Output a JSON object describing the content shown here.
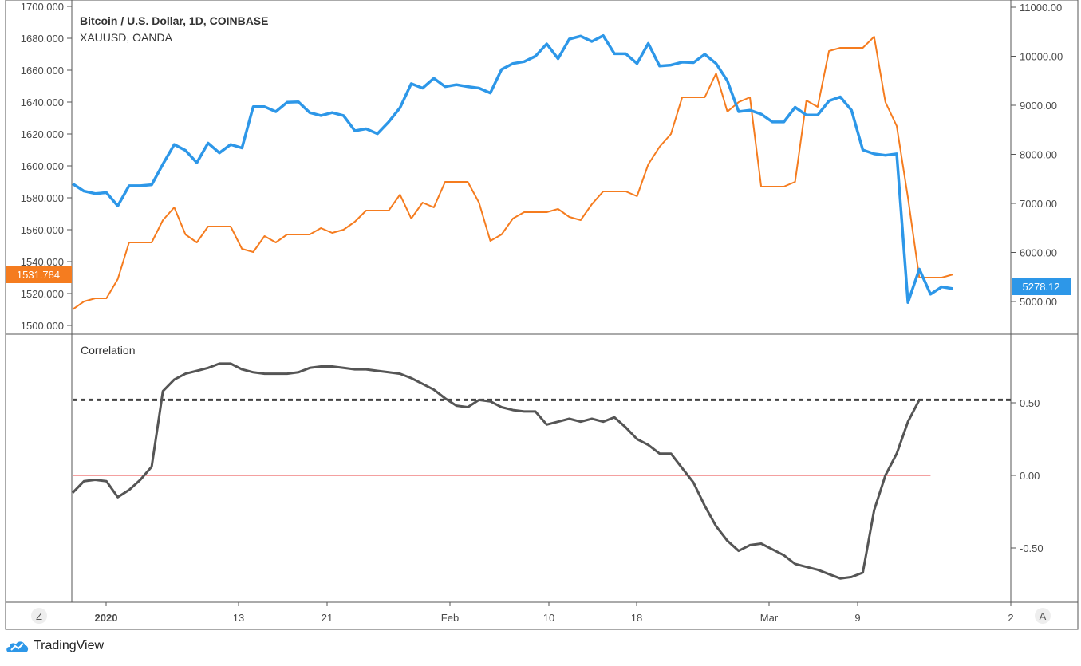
{
  "chart_data": [
    {
      "type": "line",
      "title": "Bitcoin / U.S. Dollar, 1D, COINBASE",
      "subtitle": "XAUUSD, OANDA",
      "x_labels": [
        "2020",
        "13",
        "21",
        "Feb",
        "10",
        "18",
        "Mar",
        "9",
        "2"
      ],
      "left_axis": {
        "ticks": [
          "1700.000",
          "1680.000",
          "1660.000",
          "1640.000",
          "1620.000",
          "1600.000",
          "1580.000",
          "1560.000",
          "1540.000",
          "1520.000",
          "1500.000"
        ],
        "ylim": [
          1500,
          1700
        ],
        "last_value_label": "1531.784"
      },
      "right_axis": {
        "ticks": [
          "11000.00",
          "10000.00",
          "9000.00",
          "8000.00",
          "7000.00",
          "6000.00",
          "5000.00"
        ],
        "ylim": [
          4600,
          11000
        ],
        "last_value_label": "5278.12"
      },
      "series": [
        {
          "name": "XAUUSD, OANDA",
          "axis": "left",
          "color": "#f57c1f",
          "values": [
            1510,
            1515,
            1517,
            1517,
            1529,
            1552,
            1552,
            1552,
            1566,
            1574,
            1557,
            1552,
            1562,
            1562,
            1562,
            1548,
            1546,
            1556,
            1552,
            1557,
            1557,
            1557,
            1561,
            1558,
            1560,
            1565,
            1572,
            1572,
            1572,
            1582,
            1567,
            1577,
            1574,
            1590,
            1590,
            1590,
            1577,
            1553,
            1557,
            1567,
            1571,
            1571,
            1571,
            1573,
            1568,
            1566,
            1576,
            1584,
            1584,
            1584,
            1581,
            1601,
            1612,
            1620,
            1643,
            1643,
            1643,
            1658,
            1634,
            1640,
            1643,
            1587,
            1587,
            1587,
            1590,
            1641,
            1637,
            1672,
            1674,
            1674,
            1674,
            1681,
            1640,
            1625,
            1580,
            1530,
            1530,
            1530,
            1532
          ]
        },
        {
          "name": "Bitcoin / U.S. Dollar, 1D, COINBASE",
          "axis": "right",
          "color": "#2d97e8",
          "values": [
            7400,
            7250,
            7200,
            7220,
            6950,
            7360,
            7360,
            7380,
            7800,
            8200,
            8080,
            7830,
            8230,
            8030,
            8200,
            8130,
            8970,
            8970,
            8870,
            9060,
            9070,
            8850,
            8790,
            8850,
            8790,
            8480,
            8520,
            8420,
            8660,
            8950,
            9440,
            9350,
            9550,
            9380,
            9420,
            9380,
            9350,
            9250,
            9730,
            9850,
            9890,
            10000,
            10250,
            9950,
            10350,
            10410,
            10300,
            10420,
            10050,
            10050,
            9850,
            10260,
            9800,
            9820,
            9880,
            9870,
            10040,
            9850,
            9500,
            8870,
            8900,
            8820,
            8660,
            8660,
            8960,
            8800,
            8800,
            9090,
            9170,
            8900,
            8090,
            8010,
            7980,
            8010,
            4980,
            5660,
            5150,
            5300,
            5260
          ]
        },
        {
          "name": "Correlation",
          "axis": "correlation",
          "color": "#555555",
          "values": [
            -0.12,
            -0.04,
            -0.03,
            -0.04,
            -0.15,
            -0.1,
            -0.03,
            0.06,
            0.58,
            0.66,
            0.7,
            0.72,
            0.74,
            0.77,
            0.77,
            0.73,
            0.71,
            0.7,
            0.7,
            0.7,
            0.71,
            0.74,
            0.75,
            0.75,
            0.74,
            0.73,
            0.73,
            0.72,
            0.71,
            0.7,
            0.67,
            0.63,
            0.59,
            0.53,
            0.48,
            0.47,
            0.52,
            0.51,
            0.47,
            0.45,
            0.44,
            0.44,
            0.35,
            0.37,
            0.39,
            0.37,
            0.39,
            0.37,
            0.4,
            0.33,
            0.25,
            0.21,
            0.15,
            0.15,
            0.05,
            -0.05,
            -0.21,
            -0.35,
            -0.45,
            -0.52,
            -0.48,
            -0.47,
            -0.51,
            -0.55,
            -0.61,
            -0.63,
            -0.65,
            -0.68,
            -0.71,
            -0.7,
            -0.67,
            -0.24,
            0.0,
            0.15,
            0.37,
            0.52
          ]
        }
      ],
      "correlation_panel": {
        "label": "Correlation",
        "ticks": [
          "0.50",
          "0.00",
          "-0.50"
        ],
        "ylim": [
          -0.87,
          0.94
        ],
        "reference_lines": [
          {
            "value": 0.0,
            "color": "#f08080",
            "style": "solid"
          },
          {
            "value": 0.52,
            "color": "#444444",
            "style": "dashed"
          }
        ]
      },
      "colors": {
        "xau": "#f57c1f",
        "btc": "#2d97e8",
        "correlation": "#555555",
        "grid": "#555555"
      }
    }
  ],
  "footer": {
    "brand": "TradingView",
    "left_button": "Z",
    "right_button": "A"
  }
}
